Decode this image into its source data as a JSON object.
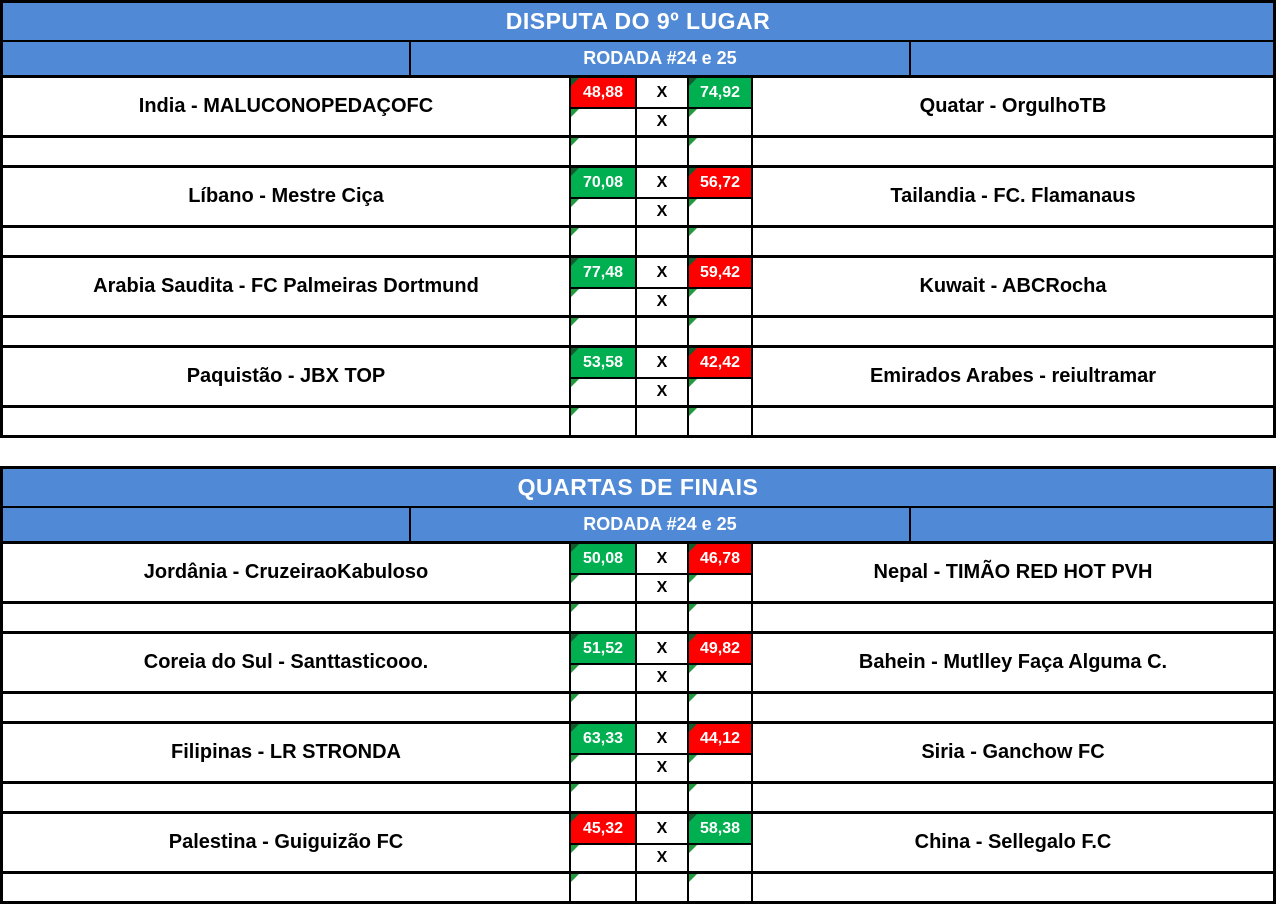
{
  "labels": {
    "x": "X"
  },
  "colors": {
    "header_blue": "#5089D5",
    "win_green": "#00B050",
    "loss_red": "#FF0000",
    "indicator_green": "#229A3E",
    "grid_black": "#000000"
  },
  "sections": [
    {
      "title": "DISPUTA DO 9º LUGAR",
      "round": "RODADA #24 e 25",
      "matches": [
        {
          "home": "India - MALUCONOPEDAÇOFC",
          "home_score": "48,88",
          "home_result": "loss",
          "away_score": "74,92",
          "away_result": "win",
          "away": "Quatar - OrgulhoTB"
        },
        {
          "home": "Líbano - Mestre Ciça",
          "home_score": "70,08",
          "home_result": "win",
          "away_score": "56,72",
          "away_result": "loss",
          "away": "Tailandia - FC. Flamanaus"
        },
        {
          "home": "Arabia Saudita - FC Palmeiras Dortmund",
          "home_score": "77,48",
          "home_result": "win",
          "away_score": "59,42",
          "away_result": "loss",
          "away": "Kuwait - ABCRocha"
        },
        {
          "home": "Paquistão - JBX TOP",
          "home_score": "53,58",
          "home_result": "win",
          "away_score": "42,42",
          "away_result": "loss",
          "away": "Emirados Arabes - reiultramar"
        }
      ]
    },
    {
      "title": "QUARTAS DE FINAIS",
      "round": "RODADA #24 e 25",
      "matches": [
        {
          "home": "Jordânia - CruzeiraoKabuloso",
          "home_score": "50,08",
          "home_result": "win",
          "away_score": "46,78",
          "away_result": "loss",
          "away": "Nepal - TIMÃO RED HOT PVH"
        },
        {
          "home": "Coreia do Sul - Santtasticooo.",
          "home_score": "51,52",
          "home_result": "win",
          "away_score": "49,82",
          "away_result": "loss",
          "away": "Bahein - Mutlley Faça Alguma C."
        },
        {
          "home": "Filipinas - LR STRONDA",
          "home_score": "63,33",
          "home_result": "win",
          "away_score": "44,12",
          "away_result": "loss",
          "away": "Siria - Ganchow FC"
        },
        {
          "home": "Palestina - Guiguizão FC",
          "home_score": "45,32",
          "home_result": "loss",
          "away_score": "58,38",
          "away_result": "win",
          "away": "China - Sellegalo F.C"
        }
      ]
    }
  ]
}
